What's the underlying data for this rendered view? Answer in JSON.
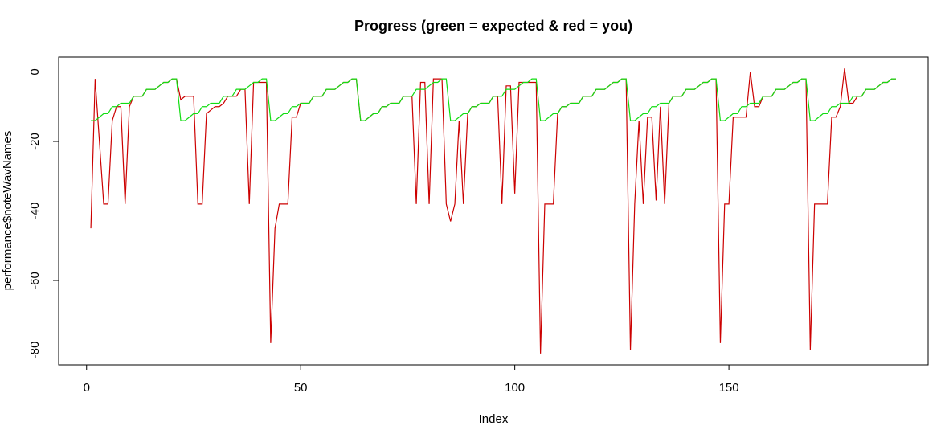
{
  "chart_data": {
    "type": "line",
    "title": "Progress (green = expected & red = you)",
    "x_label": "Index",
    "y_label": "performance$noteWavNames",
    "xlim": [
      -6.52,
      196.52
    ],
    "ylim": [
      -84.28,
      4.28
    ],
    "xticks": [
      0,
      50,
      100,
      150
    ],
    "yticks": [
      0,
      -20,
      -40,
      -60,
      -80
    ],
    "grid": false,
    "x": [
      1,
      2,
      3,
      4,
      5,
      6,
      7,
      8,
      9,
      10,
      11,
      12,
      13,
      14,
      15,
      16,
      17,
      18,
      19,
      20,
      21,
      22,
      23,
      24,
      25,
      26,
      27,
      28,
      29,
      30,
      31,
      32,
      33,
      34,
      35,
      36,
      37,
      38,
      39,
      40,
      41,
      42,
      43,
      44,
      45,
      46,
      47,
      48,
      49,
      50,
      51,
      52,
      53,
      54,
      55,
      56,
      57,
      58,
      59,
      60,
      61,
      62,
      63,
      64,
      65,
      66,
      67,
      68,
      69,
      70,
      71,
      72,
      73,
      74,
      75,
      76,
      77,
      78,
      79,
      80,
      81,
      82,
      83,
      84,
      85,
      86,
      87,
      88,
      89,
      90,
      91,
      92,
      93,
      94,
      95,
      96,
      97,
      98,
      99,
      100,
      101,
      102,
      103,
      104,
      105,
      106,
      107,
      108,
      109,
      110,
      111,
      112,
      113,
      114,
      115,
      116,
      117,
      118,
      119,
      120,
      121,
      122,
      123,
      124,
      125,
      126,
      127,
      128,
      129,
      130,
      131,
      132,
      133,
      134,
      135,
      136,
      137,
      138,
      139,
      140,
      141,
      142,
      143,
      144,
      145,
      146,
      147,
      148,
      149,
      150,
      151,
      152,
      153,
      154,
      155,
      156,
      157,
      158,
      159,
      160,
      161,
      162,
      163,
      164,
      165,
      166,
      167,
      168,
      169,
      170,
      171,
      172,
      173,
      174,
      175,
      176,
      177,
      178,
      179,
      180,
      181,
      182,
      183,
      184,
      185,
      186,
      187,
      188,
      189
    ],
    "series": [
      {
        "name": "you",
        "color": "#cc0000",
        "values": [
          -45,
          -2,
          -20,
          -38,
          -38,
          -14,
          -10,
          -10,
          -38,
          -10,
          -7,
          -7,
          -7,
          -5,
          -5,
          -5,
          -4,
          -3,
          -3,
          -2,
          -2,
          -8,
          -7,
          -7,
          -7,
          -38,
          -38,
          -12,
          -11,
          -10,
          -10,
          -9,
          -7,
          -7,
          -7,
          -5,
          -5,
          -38,
          -3,
          -3,
          -3,
          -3,
          -78,
          -45,
          -38,
          -38,
          -38,
          -13,
          -13,
          -9,
          -9,
          -9,
          -7,
          -7,
          -7,
          -5,
          -5,
          -5,
          -4,
          -3,
          -3,
          -2,
          -2,
          -14,
          -14,
          -13,
          -12,
          -12,
          -10,
          -10,
          -9,
          -9,
          -9,
          -7,
          -7,
          -7,
          -38,
          -3,
          -3,
          -38,
          -2,
          -2,
          -2,
          -38,
          -43,
          -38,
          -14,
          -38,
          -12,
          -10,
          -10,
          -9,
          -9,
          -9,
          -7,
          -7,
          -38,
          -4,
          -4,
          -35,
          -3,
          -3,
          -3,
          -3,
          -3,
          -81,
          -38,
          -38,
          -38,
          -12,
          -10,
          -10,
          -9,
          -9,
          -9,
          -7,
          -7,
          -7,
          -5,
          -5,
          -5,
          -4,
          -3,
          -3,
          -2,
          -2,
          -80,
          -38,
          -14,
          -38,
          -13,
          -13,
          -37,
          -10,
          -38,
          -9,
          -7,
          -7,
          -7,
          -5,
          -5,
          -5,
          -4,
          -3,
          -3,
          -2,
          -2,
          -78,
          -38,
          -38,
          -13,
          -13,
          -13,
          -13,
          0,
          -10,
          -10,
          -7,
          -7,
          -7,
          -5,
          -5,
          -5,
          -4,
          -3,
          -3,
          -2,
          -2,
          -80,
          -38,
          -38,
          -38,
          -38,
          -13,
          -13,
          -10,
          1,
          -9,
          -9,
          -7,
          -7,
          -5,
          -5,
          -5,
          -4,
          -3,
          -3,
          -2,
          -2
        ]
      },
      {
        "name": "expected",
        "color": "#11dd11",
        "values": [
          -14,
          -14,
          -13,
          -12,
          -12,
          -10,
          -10,
          -9,
          -9,
          -9,
          -7,
          -7,
          -7,
          -5,
          -5,
          -5,
          -4,
          -3,
          -3,
          -2,
          -2,
          -14,
          -14,
          -13,
          -12,
          -12,
          -10,
          -10,
          -9,
          -9,
          -9,
          -7,
          -7,
          -7,
          -5,
          -5,
          -5,
          -4,
          -3,
          -3,
          -2,
          -2,
          -14,
          -14,
          -13,
          -12,
          -12,
          -10,
          -10,
          -9,
          -9,
          -9,
          -7,
          -7,
          -7,
          -5,
          -5,
          -5,
          -4,
          -3,
          -3,
          -2,
          -2,
          -14,
          -14,
          -13,
          -12,
          -12,
          -10,
          -10,
          -9,
          -9,
          -9,
          -7,
          -7,
          -7,
          -5,
          -5,
          -5,
          -4,
          -3,
          -3,
          -2,
          -2,
          -14,
          -14,
          -13,
          -12,
          -12,
          -10,
          -10,
          -9,
          -9,
          -9,
          -7,
          -7,
          -7,
          -5,
          -5,
          -5,
          -4,
          -3,
          -3,
          -2,
          -2,
          -14,
          -14,
          -13,
          -12,
          -12,
          -10,
          -10,
          -9,
          -9,
          -9,
          -7,
          -7,
          -7,
          -5,
          -5,
          -5,
          -4,
          -3,
          -3,
          -2,
          -2,
          -14,
          -14,
          -13,
          -12,
          -12,
          -10,
          -10,
          -9,
          -9,
          -9,
          -7,
          -7,
          -7,
          -5,
          -5,
          -5,
          -4,
          -3,
          -3,
          -2,
          -2,
          -14,
          -14,
          -13,
          -12,
          -12,
          -10,
          -10,
          -9,
          -9,
          -9,
          -7,
          -7,
          -7,
          -5,
          -5,
          -5,
          -4,
          -3,
          -3,
          -2,
          -2,
          -14,
          -14,
          -13,
          -12,
          -12,
          -10,
          -10,
          -9,
          -9,
          -9,
          -7,
          -7,
          -7,
          -5,
          -5,
          -5,
          -4,
          -3,
          -3,
          -2,
          -2
        ]
      }
    ]
  }
}
